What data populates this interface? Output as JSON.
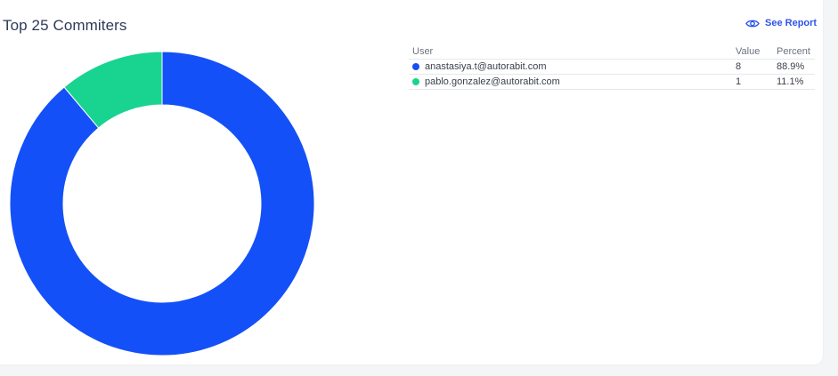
{
  "header": {
    "title": "Top 25 Commiters",
    "see_report_label": "See Report",
    "see_report_icon": "eye-icon"
  },
  "table": {
    "headers": {
      "user": "User",
      "value": "Value",
      "percent": "Percent"
    },
    "rows": [
      {
        "user": "anastasiya.t@autorabit.com",
        "value": "8",
        "percent": "88.9%",
        "color": "#1450f7"
      },
      {
        "user": "pablo.gonzalez@autorabit.com",
        "value": "1",
        "percent": "11.1%",
        "color": "#19d391"
      }
    ]
  },
  "chart_data": {
    "type": "pie",
    "donut": true,
    "title": "Top 25 Commiters",
    "categories": [
      "anastasiya.t@autorabit.com",
      "pablo.gonzalez@autorabit.com"
    ],
    "values": [
      8,
      1
    ],
    "percents": [
      88.9,
      11.1
    ],
    "colors": [
      "#1450f7",
      "#19d391"
    ],
    "legend_position": "right"
  }
}
